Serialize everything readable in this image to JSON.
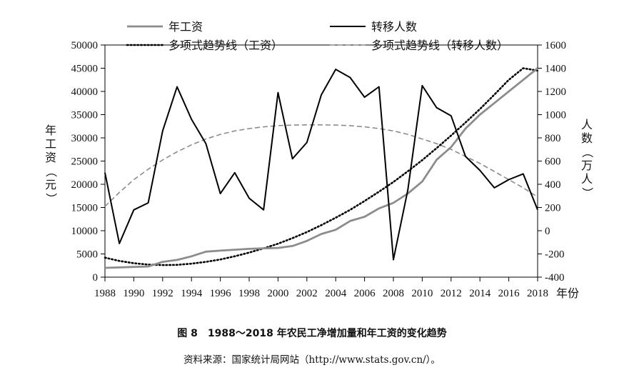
{
  "chart_data": {
    "type": "line",
    "x": [
      1988,
      1989,
      1990,
      1991,
      1992,
      1993,
      1994,
      1995,
      1996,
      1997,
      1998,
      1999,
      2000,
      2001,
      2002,
      2003,
      2004,
      2005,
      2006,
      2007,
      2008,
      2009,
      2010,
      2011,
      2012,
      2013,
      2014,
      2015,
      2016,
      2017,
      2018
    ],
    "series": [
      {
        "name": "年工资",
        "axis": "left",
        "style": "solid",
        "color": "#8c8c8c",
        "values": [
          2000,
          2100,
          2200,
          2300,
          3300,
          3700,
          4500,
          5500,
          5700,
          5900,
          6100,
          6200,
          6300,
          6700,
          7800,
          9300,
          10200,
          12100,
          13000,
          14800,
          16000,
          18000,
          20600,
          25300,
          28000,
          32000,
          35000,
          37500,
          40000,
          42500,
          45000
        ]
      },
      {
        "name": "转移人数",
        "axis": "right",
        "style": "solid",
        "color": "#000000",
        "values": [
          500,
          -110,
          180,
          240,
          860,
          1240,
          960,
          750,
          320,
          500,
          280,
          180,
          1190,
          620,
          760,
          1170,
          1390,
          1320,
          1150,
          1240,
          -250,
          350,
          1250,
          1060,
          990,
          640,
          520,
          370,
          440,
          490,
          180
        ]
      },
      {
        "name": "多项式趋势线（工资）",
        "axis": "left",
        "style": "dotted",
        "color": "#000000",
        "values": [
          4200,
          3500,
          3000,
          2700,
          2600,
          2650,
          2900,
          3300,
          3800,
          4500,
          5300,
          6200,
          7200,
          8400,
          9700,
          11200,
          12800,
          14500,
          16400,
          18400,
          20500,
          22800,
          25200,
          27800,
          30500,
          33300,
          36200,
          39300,
          42500,
          45000,
          44500
        ]
      },
      {
        "name": "多项式趋势线（转移人数）",
        "axis": "right",
        "style": "dashed",
        "color": "#8c8c8c",
        "values": [
          210,
          330,
          440,
          530,
          610,
          680,
          740,
          790,
          830,
          860,
          880,
          895,
          905,
          910,
          912,
          912,
          910,
          905,
          895,
          880,
          860,
          830,
          790,
          750,
          700,
          640,
          580,
          510,
          440,
          370,
          290
        ]
      }
    ],
    "xlabel": "年份",
    "ylabel_left": "年工资（元）",
    "ylabel_right": "人数（万人）",
    "ylim_left": [
      0,
      50000
    ],
    "ylim_right": [
      -400,
      1600
    ],
    "xticks": [
      "1988",
      "1990",
      "1992",
      "1994",
      "1996",
      "1998",
      "2000",
      "2002",
      "2004",
      "2006",
      "2008",
      "2010",
      "2012",
      "2014",
      "2016",
      "2018"
    ],
    "yticks_left": [
      "0",
      "5000",
      "10000",
      "15000",
      "20000",
      "25000",
      "30000",
      "35000",
      "40000",
      "45000",
      "50000"
    ],
    "yticks_right": [
      "-400",
      "-200",
      "0",
      "200",
      "400",
      "600",
      "800",
      "1000",
      "1200",
      "1400",
      "1600"
    ],
    "legend_placement": "top",
    "grid": false
  },
  "caption": "图 8　1988～2018 年农民工净增加量和年工资的变化趋势",
  "source": "资料来源：国家统计局网站（http://www.stats.gov.cn/）。"
}
